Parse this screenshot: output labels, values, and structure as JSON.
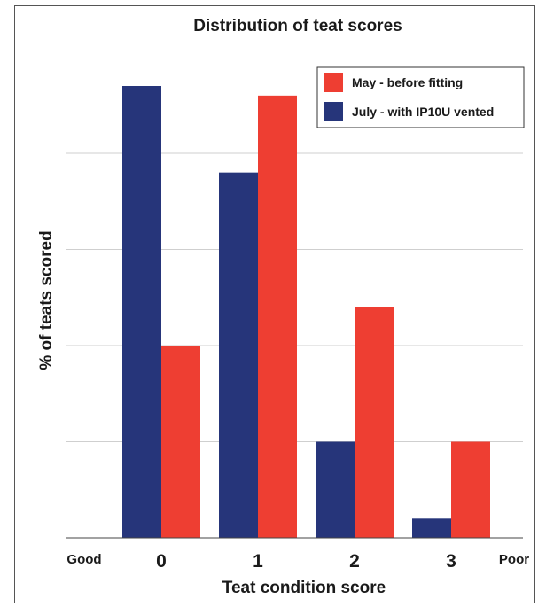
{
  "chart_data": {
    "type": "bar",
    "title": "Distribution of teat scores",
    "xlabel": "Teat condition score",
    "ylabel": "% of teats scored",
    "categories": [
      "0",
      "1",
      "2",
      "3"
    ],
    "x_end_labels": {
      "left": "Good",
      "right": "Poor"
    },
    "ylim": [
      0,
      47
    ],
    "gridlines": [
      10,
      20,
      30,
      40
    ],
    "grid": true,
    "legend_position": "top-right",
    "series": [
      {
        "name": "July - with IP10U vented",
        "color": "#26357a",
        "values": [
          47,
          38,
          10,
          2
        ]
      },
      {
        "name": "May - before fitting",
        "color": "#ee3e32",
        "values": [
          20,
          46,
          24,
          10
        ]
      }
    ],
    "legend_order": [
      1,
      0
    ]
  }
}
